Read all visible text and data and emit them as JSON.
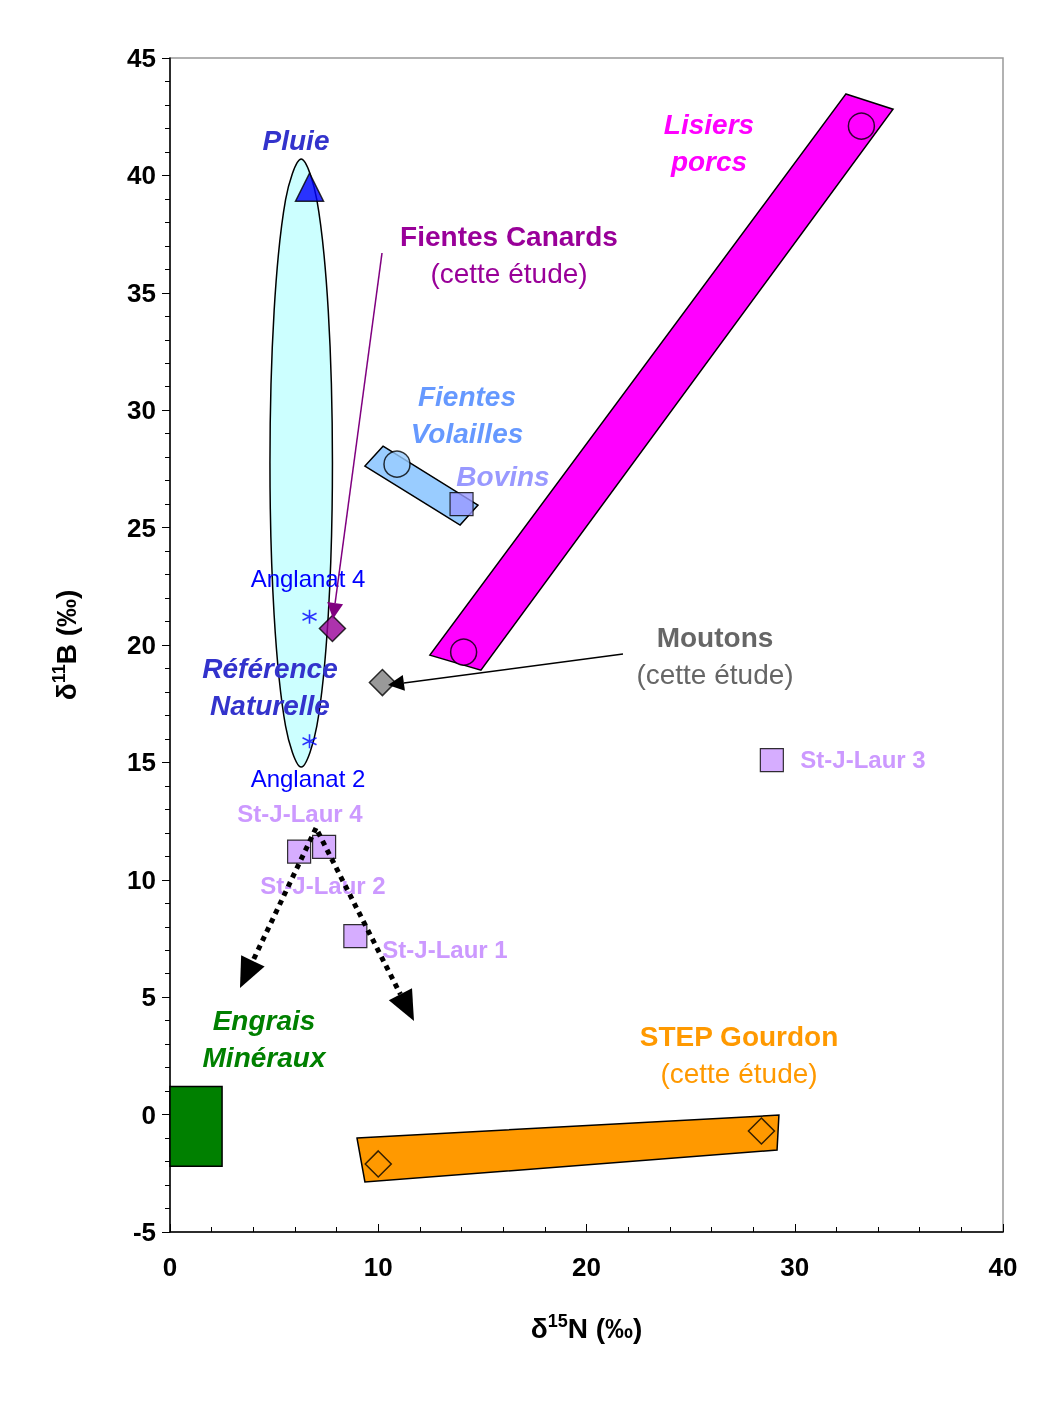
{
  "chart_data": {
    "type": "scatter",
    "xlabel": "δ$^{15}$N (‰)",
    "ylabel": "δ$^{11}$B (‰)",
    "xlim": [
      0,
      40
    ],
    "xticks": [
      0,
      10,
      20,
      30,
      40
    ],
    "ylim": [
      -5,
      45
    ],
    "yticks": [
      -5,
      0,
      5,
      10,
      15,
      20,
      25,
      30,
      35,
      40,
      45
    ],
    "grid": false,
    "series": [
      {
        "type": "area",
        "name": "Référence\nNaturelle",
        "color": "#ccffff",
        "x": [
          6.3,
          7.05,
          7.6,
          7.8,
          7.6,
          7.05,
          6.3,
          5.55,
          5.0,
          4.8,
          5.0,
          5.55
        ],
        "values": [
          40.7,
          38.97,
          34.23,
          27.75,
          21.28,
          16.54,
          14.8,
          16.54,
          21.28,
          27.75,
          34.23,
          38.97
        ]
      },
      {
        "type": "area",
        "name": "Lisiers\nporcs",
        "color": "#ff00ff",
        "x": [
          32.46,
          34.72,
          14.93,
          12.48
        ],
        "values": [
          43.47,
          42.82,
          18.93,
          19.57
        ]
      },
      {
        "type": "area",
        "name": "Fientes\nVolailles",
        "color": "#99ccff",
        "x": [
          10.23,
          14.79,
          13.93,
          9.36
        ],
        "values": [
          28.47,
          25.96,
          25.11,
          27.62
        ]
      },
      {
        "type": "area",
        "name": "STEP Gourdon\n(cette étude)",
        "color": "#ff9900",
        "x": [
          8.98,
          29.24,
          29.15,
          9.36
        ],
        "values": [
          -1.0,
          -0.02,
          -1.51,
          -2.87
        ]
      },
      {
        "type": "area",
        "name": "Engrais\nMinéraux",
        "color": "#008000",
        "x": [
          0,
          2.5,
          2.5,
          0
        ],
        "values": [
          1.2,
          1.2,
          -2.2,
          -2.2
        ]
      },
      {
        "type": "scatter",
        "name": "Pluie",
        "color": "#0000ff",
        "marker": "triangle",
        "x": [
          6.7
        ],
        "values": [
          39.5
        ]
      },
      {
        "type": "scatter",
        "color": "#ff00ff",
        "marker": "circle",
        "x": [
          33.2,
          14.1
        ],
        "values": [
          42.1,
          19.7
        ]
      },
      {
        "type": "scatter",
        "color": "#99ccff",
        "marker": "circle",
        "x": [
          10.9
        ],
        "values": [
          27.7
        ]
      },
      {
        "type": "scatter",
        "name": "Bovins",
        "color": "#9999ff",
        "marker": "square",
        "x": [
          14.0
        ],
        "values": [
          26.0
        ]
      },
      {
        "type": "scatter",
        "name": "Fientes Canards\n(cette étude)",
        "color": "#990099",
        "marker": "diamond",
        "x": [
          7.8
        ],
        "values": [
          20.7
        ]
      },
      {
        "type": "scatter",
        "name": "Moutons\n(cette étude)",
        "color": "#808080",
        "marker": "diamond",
        "x": [
          10.2
        ],
        "values": [
          18.4
        ]
      },
      {
        "type": "scatter",
        "name": "Anglanat 4",
        "color": "#0000ff",
        "marker": "cross",
        "x": [
          6.7
        ],
        "values": [
          21.2
        ]
      },
      {
        "type": "scatter",
        "name": "Anglanat 2",
        "color": "#0000ff",
        "marker": "cross",
        "x": [
          6.7
        ],
        "values": [
          15.9
        ]
      },
      {
        "type": "scatter",
        "name": "St-J-Laur 4",
        "color": "#cc99ff",
        "marker": "square",
        "x": [
          6.2
        ],
        "values": [
          11.2
        ]
      },
      {
        "type": "scatter",
        "name": "St-J-Laur 2",
        "color": "#cc99ff",
        "marker": "square",
        "x": [
          7.4
        ],
        "values": [
          11.4
        ]
      },
      {
        "type": "scatter",
        "name": "St-J-Laur 1",
        "color": "#cc99ff",
        "marker": "square",
        "x": [
          8.9
        ],
        "values": [
          7.6
        ]
      },
      {
        "type": "scatter",
        "name": "St-J-Laur 3",
        "color": "#cc99ff",
        "marker": "square",
        "x": [
          28.9
        ],
        "values": [
          15.1
        ]
      },
      {
        "color": "#ff9900",
        "marker": "diamond",
        "x": [
          10.0,
          28.4
        ],
        "values": [
          -2.1,
          -0.7
        ]
      }
    ]
  }
}
